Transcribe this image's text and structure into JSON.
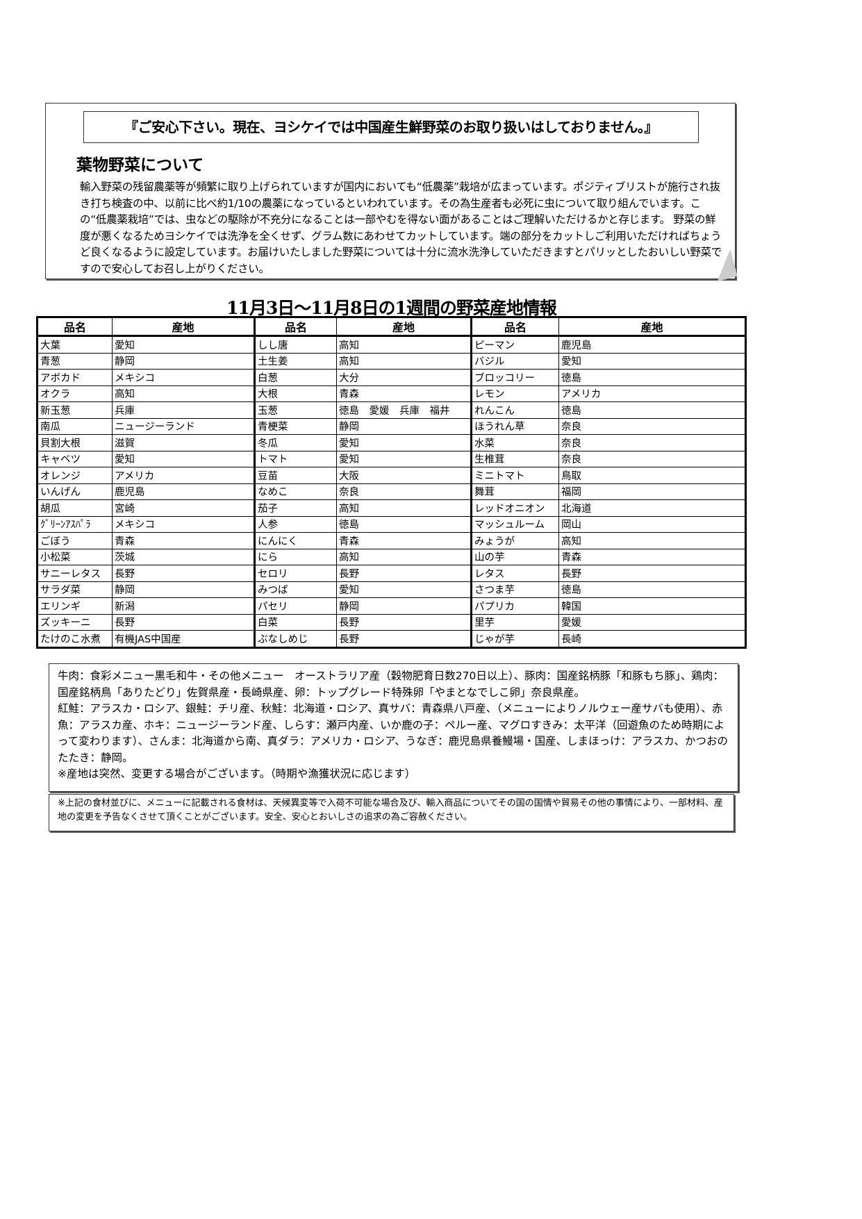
{
  "notice": "『ご安心下さい。現在、ヨシケイでは中国産生鮮野菜のお取り扱いはしておりません。』",
  "section_title": "葉物野菜について",
  "paragraph": "輸入野菜の残留農薬等が頻繁に取り上げられていますが国内においても“低農薬”栽培が広まっています。ポジティブリストが施行され抜き打ち検査の中、以前に比べ約1/10の農薬になっているといわれています。その為生産者も必死に虫について取り組んでいます。この“低農薬栽培”では、虫などの駆除が不充分になることは一部やむを得ない面があることはご理解いただけるかと存じます。 野菜の鮮度が悪くなるためヨシケイでは洗浄を全くせず、グラム数にあわせてカットしています。端の部分をカットしご利用いただければちょうど良くなるように設定しています。お届けいたしました野菜については十分に流水洗浄していただきますとパリッとしたおいしい野菜ですので安心してお召し上がりください。",
  "table": {
    "title": "11月3日～11月8日の1週間の野菜産地情報",
    "headers": [
      "品名",
      "産地",
      "品名",
      "産地",
      "品名",
      "産地"
    ],
    "rows": [
      [
        "大葉",
        "愛知",
        "しし唐",
        "高知",
        "ピーマン",
        "鹿児島"
      ],
      [
        "青葱",
        "静岡",
        "土生姜",
        "高知",
        "バジル",
        "愛知"
      ],
      [
        "アボカド",
        "メキシコ",
        "白葱",
        "大分",
        "ブロッコリー",
        "徳島"
      ],
      [
        "オクラ",
        "高知",
        "大根",
        "青森",
        "レモン",
        "アメリカ"
      ],
      [
        "新玉葱",
        "兵庫",
        "玉葱",
        "徳島　愛媛　兵庫　福井",
        "れんこん",
        "徳島"
      ],
      [
        "南瓜",
        "ニュージーランド",
        "青梗菜",
        "静岡",
        "ほうれん草",
        "奈良"
      ],
      [
        "貝割大根",
        "滋賀",
        "冬瓜",
        "愛知",
        "水菜",
        "奈良"
      ],
      [
        "キャベツ",
        "愛知",
        "トマト",
        "愛知",
        "生椎茸",
        "奈良"
      ],
      [
        "オレンジ",
        "アメリカ",
        "豆苗",
        "大阪",
        "ミニトマト",
        "鳥取"
      ],
      [
        "いんげん",
        "鹿児島",
        "なめこ",
        "奈良",
        "舞茸",
        "福岡"
      ],
      [
        "胡瓜",
        "宮崎",
        "茄子",
        "高知",
        "レッドオニオン",
        "北海道"
      ],
      [
        "ｸﾞﾘｰﾝｱｽﾊﾟﾗ",
        "メキシコ",
        "人参",
        "徳島",
        "マッシュルーム",
        "岡山"
      ],
      [
        "ごぼう",
        "青森",
        "にんにく",
        "青森",
        "みょうが",
        "高知"
      ],
      [
        "小松菜",
        "茨城",
        "にら",
        "高知",
        "山の芋",
        "青森"
      ],
      [
        "サニーレタス",
        "長野",
        "セロリ",
        "長野",
        "レタス",
        "長野"
      ],
      [
        "サラダ菜",
        "静岡",
        "みつば",
        "愛知",
        "さつま芋",
        "徳島"
      ],
      [
        "エリンギ",
        "新潟",
        "パセリ",
        "静岡",
        "パプリカ",
        "韓国"
      ],
      [
        "ズッキーニ",
        "長野",
        "白菜",
        "長野",
        "里芋",
        "愛媛"
      ],
      [
        "たけのこ水煮",
        "有機JAS中国産",
        "ぶなしめじ",
        "長野",
        "じゃが芋",
        "長崎"
      ]
    ]
  },
  "meat_fish": [
    "牛肉：食彩メニュー黒毛和牛・その他メニュー　オーストラリア産（穀物肥育日数270日以上）、豚肉：国産銘柄豚「和豚もち豚」、鶏肉：国産銘柄鳥「ありたどり」佐賀県産・長崎県産、卵：トップグレード特殊卵「やまとなでしこ卵」奈良県産。",
    "紅鮭：アラスカ・ロシア、銀鮭：チリ産、秋鮭：北海道・ロシア、真サバ：青森県八戸産、（メニューによりノルウェー産サバも使用）、赤魚：アラスカ産、ホキ：ニュージーランド産、しらす：瀬戸内産、いか鹿の子：ペルー産、マグロすきみ：太平洋（回遊魚のため時期によって変わります）、さんま：北海道から南、真ダラ：アメリカ・ロシア、うなぎ：鹿児島県養鰻場・国産、しまほっけ：アラスカ、かつおのたたき：静岡。",
    "※産地は突然、変更する場合がございます。（時期や漁獲状況に応じます）"
  ],
  "footnote": "※上記の食材並びに、メニューに記載される食材は、天候異変等で入荷不可能な場合及び、輸入商品についてその国の国情や貿易その他の事情により、一部材料、産地の変更を予告なくさせて頂くことがございます。安全、安心とおいしさの追求の為ご容赦ください。"
}
